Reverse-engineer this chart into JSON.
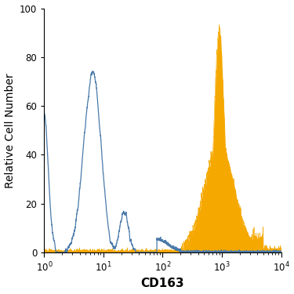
{
  "title": "",
  "xlabel": "CD163",
  "ylabel": "Relative Cell Number",
  "xlim": [
    1,
    10000
  ],
  "ylim": [
    0,
    100
  ],
  "yticks": [
    0,
    20,
    40,
    60,
    80,
    100
  ],
  "xlabel_fontsize": 11,
  "ylabel_fontsize": 10,
  "blue_color": "#4a7aaa",
  "orange_color": "#f5a800",
  "background_color": "#ffffff"
}
